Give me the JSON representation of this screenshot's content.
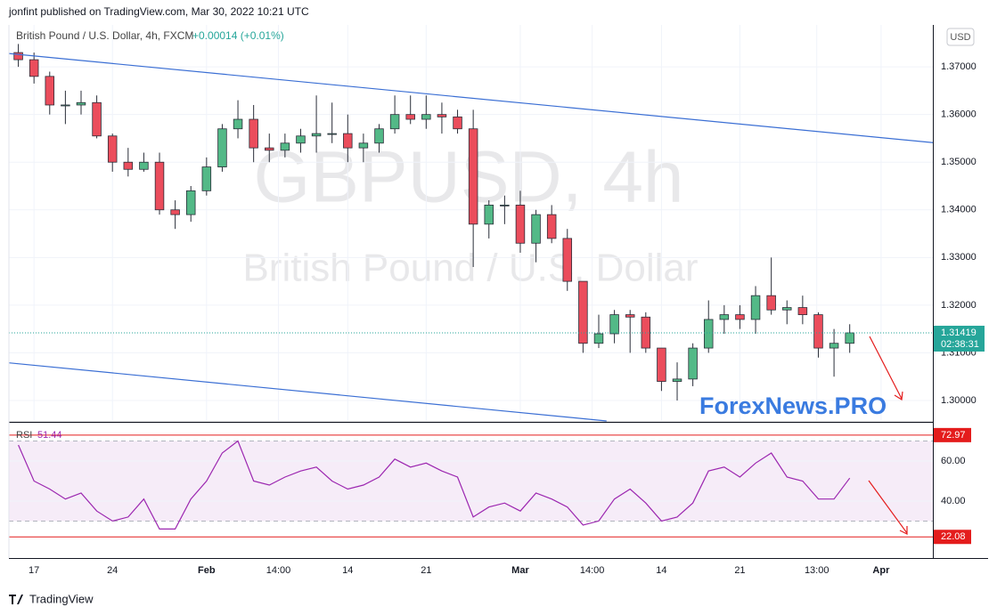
{
  "header": {
    "publisher": "jonfint published on TradingView.com, Mar 30, 2022 10:21 UTC",
    "symbol": "British Pound / U.S. Dollar, 4h, FXCM",
    "change": "+0.00014 (+0.01%)",
    "currency": "USD"
  },
  "watermark": {
    "line1": "GBPUSD, 4h",
    "line2": "British Pound / U.S. Dollar"
  },
  "brand": "ForexNews.PRO",
  "footer": "TradingView",
  "chart_data": [
    {
      "type": "candlestick",
      "x": [
        -1,
        0,
        1,
        2,
        3,
        4,
        5,
        6,
        7,
        8,
        9,
        10,
        11,
        12,
        13,
        14,
        15,
        16,
        17,
        18,
        19,
        20,
        21,
        22,
        23,
        24,
        25,
        26,
        27,
        28,
        29,
        30,
        31,
        32,
        33,
        34,
        35,
        36,
        37,
        38,
        39,
        40,
        41,
        42,
        43,
        44,
        45,
        46,
        47,
        48,
        49,
        50,
        51,
        52
      ],
      "open": [
        1.373,
        1.3715,
        1.368,
        1.362,
        1.362,
        1.3625,
        1.3555,
        1.35,
        1.3485,
        1.35,
        1.34,
        1.339,
        1.344,
        1.349,
        1.357,
        1.359,
        1.353,
        1.3525,
        1.354,
        1.3555,
        1.356,
        1.356,
        1.353,
        1.354,
        1.357,
        1.36,
        1.359,
        1.36,
        1.3595,
        1.357,
        1.337,
        1.341,
        1.341,
        1.333,
        1.339,
        1.334,
        1.325,
        1.312,
        1.314,
        1.318,
        1.3175,
        1.311,
        1.304,
        1.3045,
        1.311,
        1.317,
        1.318,
        1.317,
        1.322,
        1.319,
        1.3195,
        1.318,
        1.311,
        1.312
      ],
      "high": [
        1.3748,
        1.373,
        1.369,
        1.365,
        1.365,
        1.364,
        1.356,
        1.353,
        1.352,
        1.352,
        1.342,
        1.345,
        1.351,
        1.358,
        1.363,
        1.362,
        1.356,
        1.356,
        1.357,
        1.364,
        1.3625,
        1.36,
        1.356,
        1.358,
        1.364,
        1.364,
        1.364,
        1.3625,
        1.361,
        1.361,
        1.342,
        1.343,
        1.344,
        1.34,
        1.341,
        1.336,
        1.325,
        1.318,
        1.319,
        1.319,
        1.3185,
        1.311,
        1.308,
        1.312,
        1.321,
        1.32,
        1.32,
        1.324,
        1.33,
        1.321,
        1.322,
        1.3185,
        1.315,
        1.316
      ],
      "low": [
        1.37,
        1.3665,
        1.36,
        1.358,
        1.36,
        1.355,
        1.348,
        1.347,
        1.348,
        1.339,
        1.336,
        1.3375,
        1.343,
        1.348,
        1.355,
        1.35,
        1.35,
        1.351,
        1.352,
        1.352,
        1.354,
        1.35,
        1.35,
        1.352,
        1.356,
        1.358,
        1.357,
        1.356,
        1.356,
        1.328,
        1.334,
        1.337,
        1.331,
        1.329,
        1.333,
        1.323,
        1.31,
        1.311,
        1.312,
        1.31,
        1.31,
        1.302,
        1.3,
        1.303,
        1.31,
        1.314,
        1.315,
        1.314,
        1.318,
        1.316,
        1.316,
        1.309,
        1.305,
        1.31
      ],
      "close": [
        1.3715,
        1.368,
        1.362,
        1.362,
        1.3625,
        1.3555,
        1.35,
        1.3485,
        1.35,
        1.34,
        1.339,
        1.344,
        1.349,
        1.357,
        1.359,
        1.353,
        1.3525,
        1.354,
        1.3555,
        1.356,
        1.356,
        1.353,
        1.354,
        1.357,
        1.36,
        1.359,
        1.36,
        1.3595,
        1.357,
        1.337,
        1.341,
        1.341,
        1.333,
        1.339,
        1.334,
        1.325,
        1.312,
        1.314,
        1.318,
        1.3175,
        1.311,
        1.304,
        1.3045,
        1.311,
        1.317,
        1.318,
        1.317,
        1.322,
        1.319,
        1.3195,
        1.318,
        1.311,
        1.312,
        1.31419
      ],
      "up_color": "#53b987",
      "down_color": "#eb4d5c",
      "xlim": [
        -1.6,
        57.3
      ],
      "ylim": [
        1.2957,
        1.3788
      ],
      "yticks": [
        {
          "value": 1.3,
          "label": "1.30000"
        },
        {
          "value": 1.31,
          "label": "1.31000"
        },
        {
          "value": 1.32,
          "label": "1.32000"
        },
        {
          "value": 1.33,
          "label": "1.33000"
        },
        {
          "value": 1.34,
          "label": "1.34000"
        },
        {
          "value": 1.35,
          "label": "1.35000"
        },
        {
          "value": 1.36,
          "label": "1.36000"
        },
        {
          "value": 1.37,
          "label": "1.37000"
        }
      ],
      "xticks": [
        {
          "value": 0,
          "label": "17"
        },
        {
          "value": 5,
          "label": "24"
        },
        {
          "value": 11,
          "label": "Feb"
        },
        {
          "value": 15.58,
          "label": "14:00"
        },
        {
          "value": 20,
          "label": "14"
        },
        {
          "value": 25,
          "label": "21"
        },
        {
          "value": 31,
          "label": "Mar"
        },
        {
          "value": 35.58,
          "label": "14:00"
        },
        {
          "value": 40,
          "label": "14"
        },
        {
          "value": 45,
          "label": "21"
        },
        {
          "value": 49.9,
          "label": "13:00"
        },
        {
          "value": 54,
          "label": "Apr"
        }
      ],
      "grid": true,
      "last_price": 1.31419,
      "countdown": "02:38:31",
      "last_price_color": "#26a69a",
      "trendlines": [
        {
          "x": [
            -1.6,
            57.3
          ],
          "y": [
            1.3728,
            1.3541
          ],
          "color": "#3b6fd4"
        },
        {
          "x": [
            -1.6,
            36.5
          ],
          "y": [
            1.3079,
            1.2957
          ],
          "color": "#3b6fd4"
        }
      ]
    },
    {
      "type": "line",
      "title": "RSI",
      "current": 51.44,
      "x": [
        -1,
        0,
        1,
        2,
        3,
        4,
        5,
        6,
        7,
        8,
        9,
        10,
        11,
        12,
        13,
        14,
        15,
        16,
        17,
        18,
        19,
        20,
        21,
        22,
        23,
        24,
        25,
        26,
        27,
        28,
        29,
        30,
        31,
        32,
        33,
        34,
        35,
        36,
        37,
        38,
        39,
        40,
        41,
        42,
        43,
        44,
        45,
        46,
        47,
        48,
        49,
        50,
        51,
        52
      ],
      "series": [
        {
          "name": "RSI",
          "color": "#9c27b0",
          "values": [
            68,
            50,
            46,
            41,
            44,
            35,
            30,
            32,
            41,
            26,
            26,
            41,
            50,
            64,
            70,
            50,
            48,
            52,
            55,
            57,
            50,
            46,
            48,
            52,
            61,
            57,
            59,
            55,
            52,
            32,
            37,
            39,
            35,
            44,
            41,
            37,
            28,
            30,
            41,
            46,
            39,
            30,
            32,
            39,
            55,
            57,
            52,
            59,
            64,
            52,
            50,
            41,
            41,
            51.44
          ]
        }
      ],
      "xlim": [
        -1.6,
        57.3
      ],
      "ylim": [
        12.4,
        77.8
      ],
      "yticks": [
        {
          "value": 40,
          "label": "40.00"
        },
        {
          "value": 60,
          "label": "60.00"
        }
      ],
      "bands": [
        70,
        30
      ],
      "levels": [
        72.97,
        22.08
      ],
      "level_color": "#e41c1c",
      "grid": true
    }
  ]
}
